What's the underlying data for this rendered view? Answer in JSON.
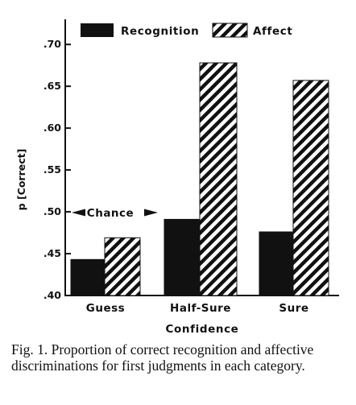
{
  "chart_data": {
    "type": "bar",
    "categories": [
      "Guess",
      "Half-Sure",
      "Sure"
    ],
    "series": [
      {
        "name": "Recognition",
        "values": [
          0.443,
          0.491,
          0.476
        ],
        "color": "#111111",
        "pattern": "solid"
      },
      {
        "name": "Affect",
        "values": [
          0.469,
          0.678,
          0.657
        ],
        "color": "#111111",
        "pattern": "diagonal-hatch"
      }
    ],
    "xlabel": "Confidence",
    "ylabel": "p [Correct]",
    "ylim": [
      0.4,
      0.73
    ],
    "yticks": [
      0.4,
      0.45,
      0.5,
      0.55,
      0.6,
      0.65,
      0.7
    ],
    "ytick_labels": [
      ".40",
      ".45",
      ".50",
      ".55",
      ".60",
      ".65",
      ".70"
    ],
    "legend_position": "top",
    "grid": false,
    "annotations": [
      {
        "text": "Chance",
        "y": 0.505,
        "style": "double-arrow"
      }
    ]
  },
  "caption": "Fig. 1. Proportion of correct recognition and affective discriminations for first judgments in each category."
}
